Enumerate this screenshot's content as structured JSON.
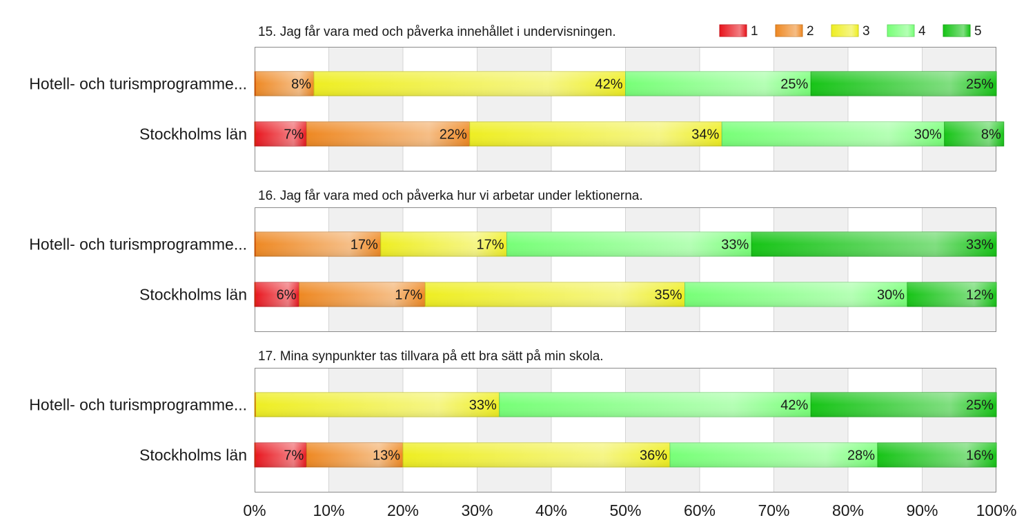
{
  "chart_data": {
    "type": "bar",
    "orientation": "horizontal",
    "stacked": true,
    "legend": {
      "position": "top-right",
      "entries": [
        {
          "label": "1",
          "color": "#e8141c"
        },
        {
          "label": "2",
          "color": "#ee8822"
        },
        {
          "label": "3",
          "color": "#eeee22"
        },
        {
          "label": "4",
          "color": "#77ff77"
        },
        {
          "label": "5",
          "color": "#16c416"
        }
      ]
    },
    "xlim": [
      0,
      100
    ],
    "x_ticks": [
      "0%",
      "10%",
      "20%",
      "30%",
      "40%",
      "50%",
      "60%",
      "70%",
      "80%",
      "90%",
      "100%"
    ],
    "grid": true,
    "panels": [
      {
        "title": "15. Jag får vara med och påverka innehållet i undervisningen.",
        "show_legend": true,
        "categories": [
          "Hotell- och turismprogramme...",
          "Stockholms län"
        ],
        "series": [
          {
            "name": "1",
            "values": [
              0,
              7
            ]
          },
          {
            "name": "2",
            "values": [
              8,
              22
            ]
          },
          {
            "name": "3",
            "values": [
              42,
              34
            ]
          },
          {
            "name": "4",
            "values": [
              25,
              30
            ]
          },
          {
            "name": "5",
            "values": [
              25,
              8
            ]
          }
        ]
      },
      {
        "title": "16. Jag får vara med och påverka hur vi arbetar under lektionerna.",
        "show_legend": false,
        "categories": [
          "Hotell- och turismprogramme...",
          "Stockholms län"
        ],
        "series": [
          {
            "name": "1",
            "values": [
              0,
              6
            ]
          },
          {
            "name": "2",
            "values": [
              17,
              17
            ]
          },
          {
            "name": "3",
            "values": [
              17,
              35
            ]
          },
          {
            "name": "4",
            "values": [
              33,
              30
            ]
          },
          {
            "name": "5",
            "values": [
              33,
              12
            ]
          }
        ]
      },
      {
        "title": "17. Mina synpunkter tas tillvara på ett bra sätt på min skola.",
        "show_legend": false,
        "categories": [
          "Hotell- och turismprogramme...",
          "Stockholms län"
        ],
        "series": [
          {
            "name": "1",
            "values": [
              0,
              7
            ]
          },
          {
            "name": "2",
            "values": [
              0,
              13
            ]
          },
          {
            "name": "3",
            "values": [
              33,
              36
            ]
          },
          {
            "name": "4",
            "values": [
              42,
              28
            ]
          },
          {
            "name": "5",
            "values": [
              25,
              16
            ]
          }
        ]
      }
    ]
  }
}
